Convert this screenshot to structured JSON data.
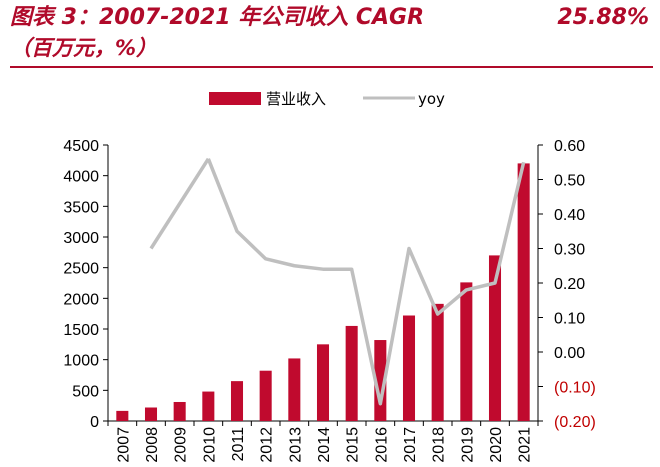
{
  "header": {
    "title": "图表 3：2007-2021 年公司收入 CAGR",
    "title_value": "25.88%",
    "subtitle": "（百万元，%）"
  },
  "colors": {
    "bar": "#c00a2e",
    "line": "#bfbfbf",
    "negative_tick": "#c00000",
    "title": "#b00a2a"
  },
  "chart_data": {
    "type": "bar",
    "categories": [
      "2007",
      "2008",
      "2009",
      "2010",
      "2011",
      "2012",
      "2013",
      "2014",
      "2015",
      "2016",
      "2017",
      "2018",
      "2019",
      "2020",
      "2021"
    ],
    "series": [
      {
        "name": "营业收入",
        "type": "bar",
        "axis": "left",
        "values": [
          165,
          220,
          310,
          480,
          650,
          820,
          1020,
          1250,
          1550,
          1320,
          1720,
          1910,
          2260,
          2700,
          4200
        ]
      },
      {
        "name": "yoy",
        "type": "line",
        "axis": "right",
        "values": [
          null,
          0.3,
          null,
          0.56,
          0.35,
          0.27,
          0.25,
          0.24,
          0.24,
          -0.15,
          0.3,
          0.11,
          0.18,
          0.2,
          0.55
        ]
      }
    ],
    "y_left": {
      "ylim": [
        0,
        4500
      ],
      "ticks": [
        "0",
        "500",
        "1000",
        "1500",
        "2000",
        "2500",
        "3000",
        "3500",
        "4000",
        "4500"
      ]
    },
    "y_right": {
      "ylim": [
        -0.2,
        0.6
      ],
      "ticks": [
        "(0.20)",
        "(0.10)",
        "0.00",
        "0.10",
        "0.20",
        "0.30",
        "0.40",
        "0.50",
        "0.60"
      ]
    },
    "legend_position": "top-center",
    "grid": false
  }
}
